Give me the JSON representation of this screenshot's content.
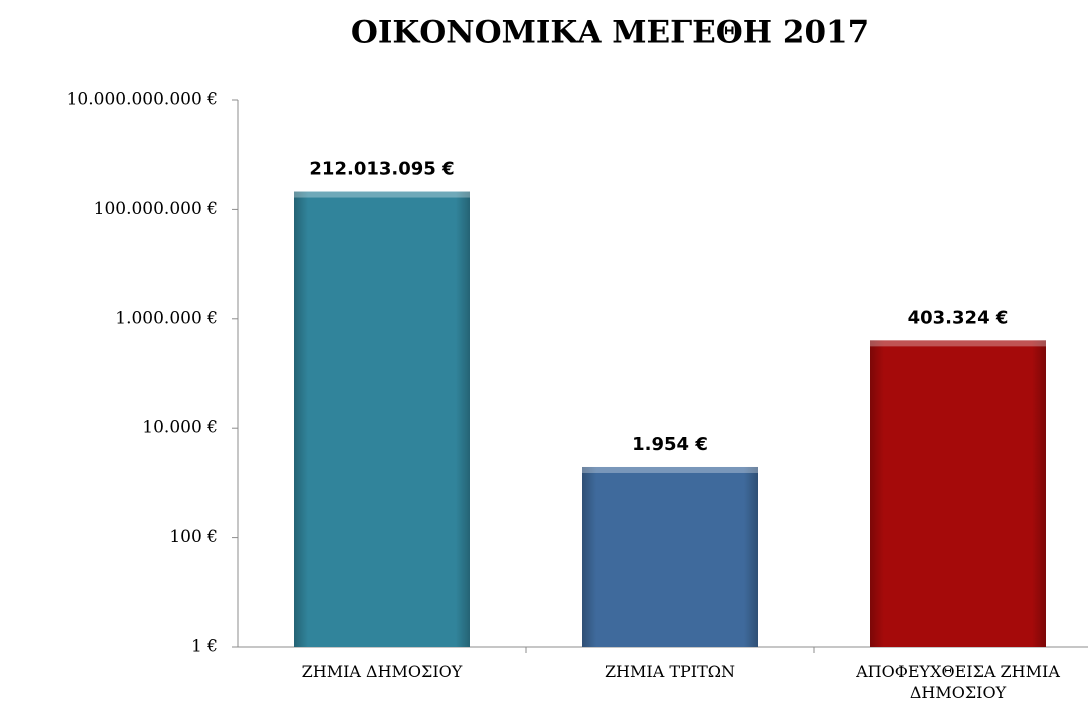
{
  "chart_data": {
    "type": "bar",
    "title": "ΟΙΚΟΝΟΜΙΚΑ ΜΕΓΕΘΗ 2017",
    "categories": [
      "ΖΗΜΙΑ ΔΗΜΟΣΙΟΥ",
      "ΖΗΜΙΑ ΤΡΙΤΩΝ",
      "ΑΠΟΦΕΥΧΘΕΙΣΑ ΖΗΜΙΑ ΔΗΜΟΣΙΟΥ"
    ],
    "values": [
      212013095,
      1954,
      403324
    ],
    "value_labels": [
      "212.013.095 €",
      "1.954 €",
      "403.324 €"
    ],
    "colors": [
      "#31849b",
      "#3f6a9c",
      "#a50a0a"
    ],
    "log_scale": true,
    "ylim": [
      1,
      10000000000
    ],
    "yticks": [
      {
        "value": 1,
        "label": "1 €"
      },
      {
        "value": 100,
        "label": "100 €"
      },
      {
        "value": 10000,
        "label": "10.000 €"
      },
      {
        "value": 1000000,
        "label": "1.000.000 €"
      },
      {
        "value": 100000000,
        "label": "100.000.000 €"
      },
      {
        "value": 10000000000,
        "label": "10.000.000.000 €"
      }
    ],
    "grid": false
  }
}
